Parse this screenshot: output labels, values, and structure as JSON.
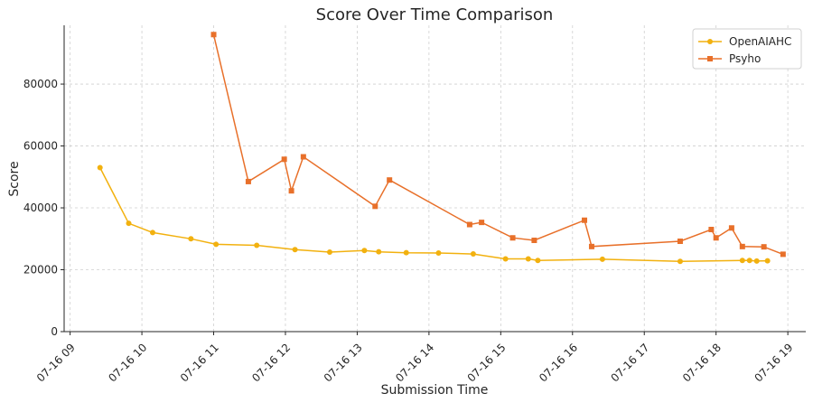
{
  "chart_data": {
    "type": "line",
    "title": "Score Over Time Comparison",
    "xlabel": "Submission Time",
    "ylabel": "Score",
    "x_axis": {
      "type": "time",
      "range": [
        "2024-07-16T08:55",
        "2024-07-16T19:15"
      ],
      "tick_values": [
        "2024-07-16T09:00",
        "2024-07-16T10:00",
        "2024-07-16T11:00",
        "2024-07-16T12:00",
        "2024-07-16T13:00",
        "2024-07-16T14:00",
        "2024-07-16T15:00",
        "2024-07-16T16:00",
        "2024-07-16T17:00",
        "2024-07-16T18:00",
        "2024-07-16T19:00"
      ],
      "tick_labels": [
        "07-16 09",
        "07-16 10",
        "07-16 11",
        "07-16 12",
        "07-16 13",
        "07-16 14",
        "07-16 15",
        "07-16 16",
        "07-16 17",
        "07-16 18",
        "07-16 19"
      ]
    },
    "y_axis": {
      "range": [
        0,
        99000
      ],
      "ticks": [
        0,
        20000,
        40000,
        60000,
        80000
      ],
      "tick_labels": [
        "0",
        "20000",
        "40000",
        "60000",
        "80000"
      ]
    },
    "grid": true,
    "legend_position": "top-right",
    "series": [
      {
        "name": "OpenAIAHC",
        "color": "#f2b10f",
        "marker": "circle",
        "points": [
          {
            "x": "2024-07-16T09:25",
            "y": 53000
          },
          {
            "x": "2024-07-16T09:49",
            "y": 35000
          },
          {
            "x": "2024-07-16T10:09",
            "y": 32000
          },
          {
            "x": "2024-07-16T10:41",
            "y": 30000
          },
          {
            "x": "2024-07-16T11:02",
            "y": 28200
          },
          {
            "x": "2024-07-16T11:36",
            "y": 27900
          },
          {
            "x": "2024-07-16T12:08",
            "y": 26500
          },
          {
            "x": "2024-07-16T12:37",
            "y": 25700
          },
          {
            "x": "2024-07-16T13:06",
            "y": 26200
          },
          {
            "x": "2024-07-16T13:18",
            "y": 25800
          },
          {
            "x": "2024-07-16T13:41",
            "y": 25500
          },
          {
            "x": "2024-07-16T14:08",
            "y": 25400
          },
          {
            "x": "2024-07-16T14:37",
            "y": 25100
          },
          {
            "x": "2024-07-16T15:04",
            "y": 23500
          },
          {
            "x": "2024-07-16T15:23",
            "y": 23500
          },
          {
            "x": "2024-07-16T15:31",
            "y": 23000
          },
          {
            "x": "2024-07-16T16:25",
            "y": 23400
          },
          {
            "x": "2024-07-16T17:30",
            "y": 22700
          },
          {
            "x": "2024-07-16T18:22",
            "y": 23000
          },
          {
            "x": "2024-07-16T18:28",
            "y": 23000
          },
          {
            "x": "2024-07-16T18:34",
            "y": 22800
          },
          {
            "x": "2024-07-16T18:43",
            "y": 22900
          }
        ]
      },
      {
        "name": "Psyho",
        "color": "#e8702a",
        "marker": "square",
        "points": [
          {
            "x": "2024-07-16T11:00",
            "y": 96000
          },
          {
            "x": "2024-07-16T11:29",
            "y": 48500
          },
          {
            "x": "2024-07-16T11:59",
            "y": 55700
          },
          {
            "x": "2024-07-16T12:05",
            "y": 45500
          },
          {
            "x": "2024-07-16T12:15",
            "y": 56500
          },
          {
            "x": "2024-07-16T13:15",
            "y": 40500
          },
          {
            "x": "2024-07-16T13:27",
            "y": 49000
          },
          {
            "x": "2024-07-16T14:34",
            "y": 34600
          },
          {
            "x": "2024-07-16T14:44",
            "y": 35300
          },
          {
            "x": "2024-07-16T15:10",
            "y": 30300
          },
          {
            "x": "2024-07-16T15:28",
            "y": 29500
          },
          {
            "x": "2024-07-16T16:10",
            "y": 36000
          },
          {
            "x": "2024-07-16T16:16",
            "y": 27500
          },
          {
            "x": "2024-07-16T17:30",
            "y": 29200
          },
          {
            "x": "2024-07-16T17:56",
            "y": 33000
          },
          {
            "x": "2024-07-16T18:00",
            "y": 30300
          },
          {
            "x": "2024-07-16T18:13",
            "y": 33500
          },
          {
            "x": "2024-07-16T18:22",
            "y": 27500
          },
          {
            "x": "2024-07-16T18:40",
            "y": 27400
          },
          {
            "x": "2024-07-16T18:56",
            "y": 25000
          }
        ]
      }
    ]
  }
}
